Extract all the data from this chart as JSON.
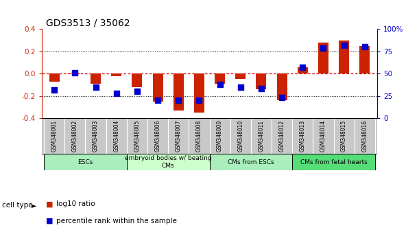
{
  "title": "GDS3513 / 35062",
  "samples": [
    "GSM348001",
    "GSM348002",
    "GSM348003",
    "GSM348004",
    "GSM348005",
    "GSM348006",
    "GSM348007",
    "GSM348008",
    "GSM348009",
    "GSM348010",
    "GSM348011",
    "GSM348012",
    "GSM348013",
    "GSM348014",
    "GSM348015",
    "GSM348016"
  ],
  "log10_ratio": [
    -0.07,
    0.01,
    -0.09,
    -0.02,
    -0.12,
    -0.25,
    -0.33,
    -0.35,
    -0.09,
    -0.05,
    -0.14,
    -0.24,
    0.06,
    0.28,
    0.3,
    0.25
  ],
  "percentile_rank": [
    32,
    51,
    35,
    28,
    30,
    20,
    20,
    20,
    38,
    35,
    33,
    23,
    57,
    79,
    82,
    80
  ],
  "bar_color": "#cc2200",
  "dot_color": "#0000cc",
  "ylim": [
    -0.4,
    0.4
  ],
  "y2lim": [
    0,
    100
  ],
  "yticks": [
    -0.4,
    -0.2,
    0.0,
    0.2,
    0.4
  ],
  "y2ticks": [
    0,
    25,
    50,
    75,
    100
  ],
  "y2ticklabels": [
    "0",
    "25",
    "50",
    "75",
    "100%"
  ],
  "dotted_lines": [
    -0.2,
    0.2
  ],
  "zero_line_color": "#dd0000",
  "dotted_color": "black",
  "groups": [
    {
      "label": "ESCs",
      "start": 0,
      "end": 4,
      "color": "#aaeebb"
    },
    {
      "label": "embryoid bodies w/ beating\nCMs",
      "start": 4,
      "end": 8,
      "color": "#ccffcc"
    },
    {
      "label": "CMs from ESCs",
      "start": 8,
      "end": 12,
      "color": "#aaeebb"
    },
    {
      "label": "CMs from fetal hearts",
      "start": 12,
      "end": 16,
      "color": "#55dd77"
    }
  ],
  "legend_red_label": "log10 ratio",
  "legend_blue_label": "percentile rank within the sample",
  "cell_type_label": "cell type",
  "bg_color": "white",
  "bar_width": 0.5,
  "dot_size": 28
}
